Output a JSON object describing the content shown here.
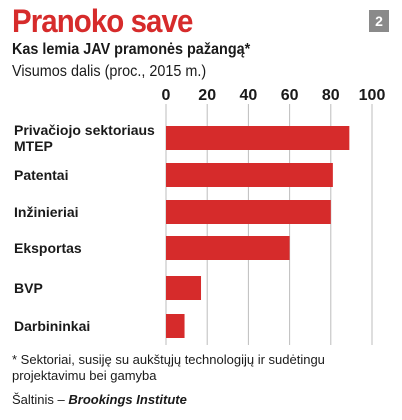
{
  "badge": "2",
  "chart_data": {
    "type": "bar",
    "orientation": "horizontal",
    "title": "Pranoko save",
    "subtitle": "Kas lemia JAV pramonės pažangą*",
    "unit_label": "Visumos dalis (proc., 2015 m.)",
    "categories": [
      [
        "Privačiojo sektoriaus",
        "MTEP"
      ],
      [
        "Patentai"
      ],
      [
        "Inžinieriai"
      ],
      [
        "Eksportas"
      ],
      [
        "BVP"
      ],
      [
        "Darbininkai"
      ]
    ],
    "values": [
      89,
      81,
      80,
      60,
      17,
      9
    ],
    "xlim": [
      0,
      100
    ],
    "ticks": [
      0,
      20,
      40,
      60,
      80,
      100
    ],
    "bar_color": "#d62b2b",
    "grid": true
  },
  "footnote": "* Sektoriai, susiję su aukštųjų technologijų ir sudėtingu projektavimu bei gamyba",
  "source": {
    "prefix": "Šaltinis – ",
    "name": "Brookings Institute"
  }
}
